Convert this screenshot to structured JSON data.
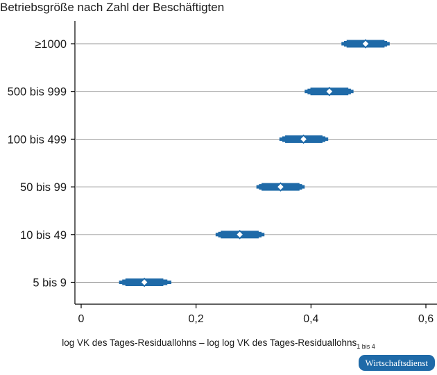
{
  "chart_data": {
    "type": "scatter",
    "title": "Betriebsgröße nach Zahl der Beschäftigten",
    "xlabel": "log VK des Tages-Residuallohns – log log VK des Tages-Residuallohns",
    "xlabel_subscript": "1 bis 4",
    "ylabel": "",
    "categories": [
      "≥1000",
      "500 bis 999",
      "100 bis 499",
      "50 bis 99",
      "10 bis 49",
      "5 bis 9"
    ],
    "points": [
      {
        "category": "≥1000",
        "value": 0.495,
        "ci_inner": [
          0.462,
          0.528
        ],
        "ci_outer": [
          0.453,
          0.537
        ]
      },
      {
        "category": "500 bis 999",
        "value": 0.432,
        "ci_inner": [
          0.399,
          0.465
        ],
        "ci_outer": [
          0.389,
          0.474
        ]
      },
      {
        "category": "100 bis 499",
        "value": 0.387,
        "ci_inner": [
          0.355,
          0.42
        ],
        "ci_outer": [
          0.345,
          0.43
        ]
      },
      {
        "category": "50 bis 99",
        "value": 0.347,
        "ci_inner": [
          0.314,
          0.38
        ],
        "ci_outer": [
          0.305,
          0.389
        ]
      },
      {
        "category": "10 bis 49",
        "value": 0.276,
        "ci_inner": [
          0.243,
          0.309
        ],
        "ci_outer": [
          0.234,
          0.319
        ]
      },
      {
        "category": "5 bis 9",
        "value": 0.11,
        "ci_inner": [
          0.077,
          0.143
        ],
        "ci_outer": [
          0.066,
          0.157
        ]
      }
    ],
    "x_ticks": [
      {
        "value": 0,
        "label": "0"
      },
      {
        "value": 0.2,
        "label": "0,2"
      },
      {
        "value": 0.4,
        "label": "0,4"
      },
      {
        "value": 0.6,
        "label": "0,6"
      }
    ],
    "xlim": [
      0,
      0.6
    ],
    "grid": "horizontal",
    "colors": {
      "marker": "#1f6aa8",
      "grid": "#9a9a9a",
      "axis": "#000000"
    }
  },
  "brand": "Wirtschaftsdienst"
}
